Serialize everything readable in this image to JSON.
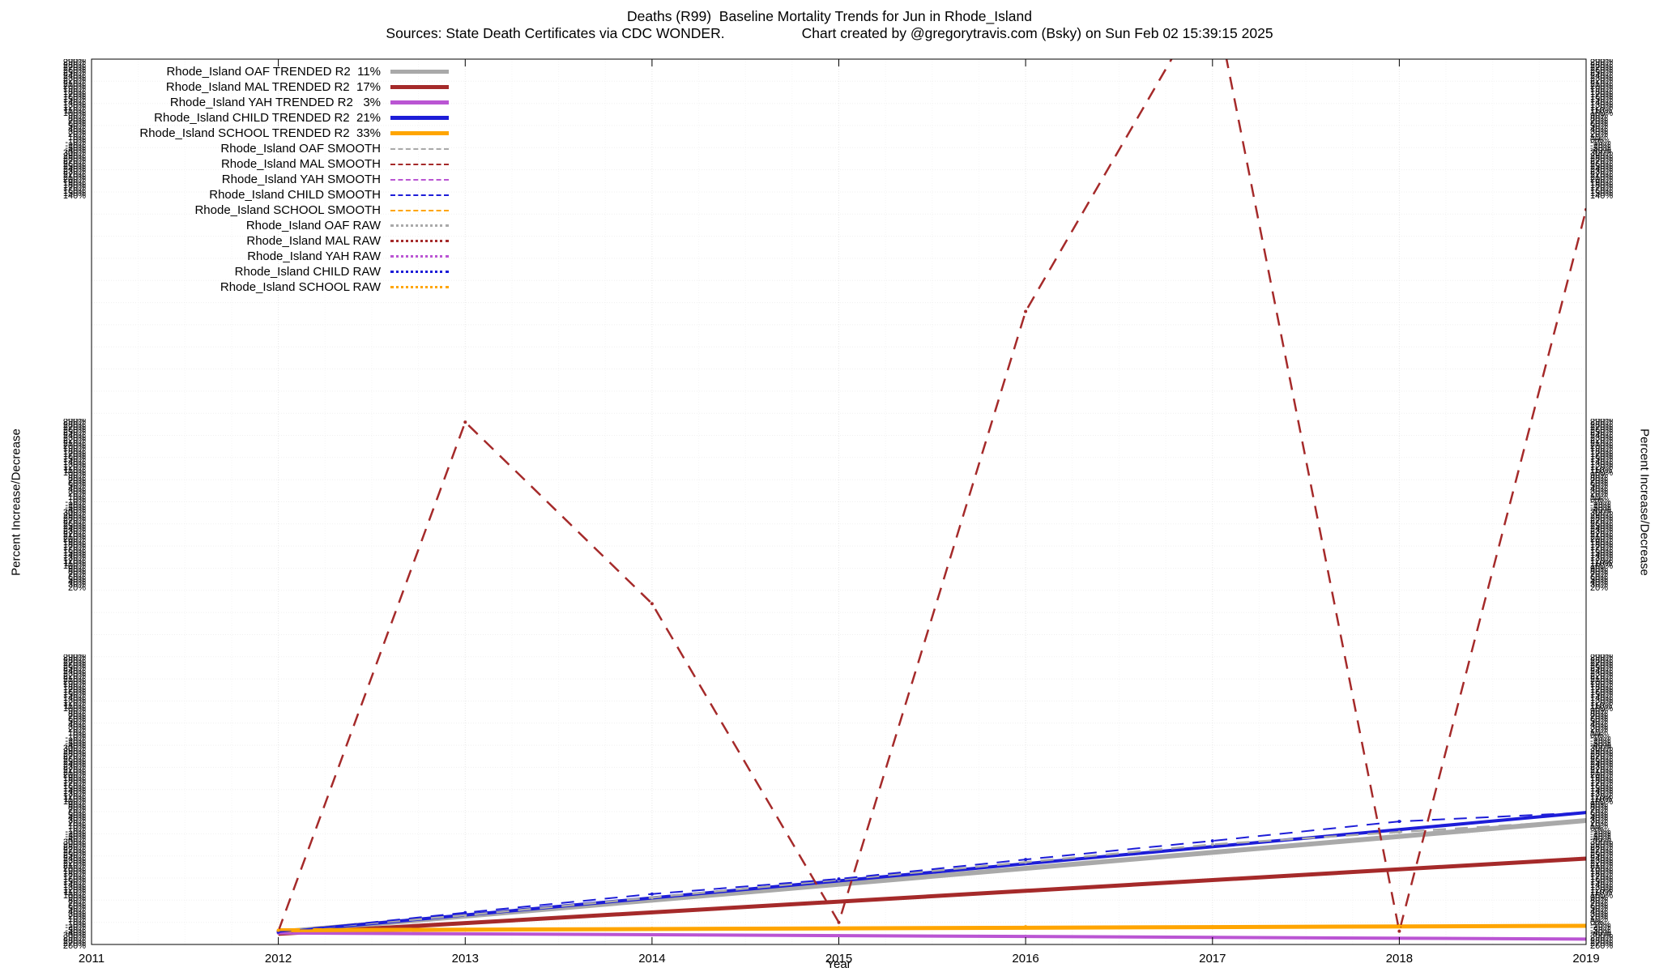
{
  "chart_data": {
    "type": "line",
    "title": "Deaths (R99)  Baseline Mortality Trends for Jun in Rhode_Island",
    "sources": "Sources: State Death Certificates via CDC WONDER.",
    "credit": "Chart created by @gregorytravis.com (Bsky) on Sun Feb 02 15:39:15 2025",
    "xlabel": "Year",
    "ylabel": "Percent Increase/Decrease",
    "xlim": [
      2011,
      2019
    ],
    "ylim": [
      0,
      100
    ],
    "y_tick_labels": "illegible (dense overlapping percent labels on both left and right axes)",
    "x_ticks": [
      "2011",
      "2012",
      "2013",
      "2014",
      "2015",
      "2016",
      "2017",
      "2018",
      "2019"
    ],
    "grid": true,
    "legend_position": "top-left",
    "legend": [
      {
        "label": "Rhode_Island OAF TRENDED R2  11%",
        "style": "solid",
        "color": "#a9a9a9"
      },
      {
        "label": "Rhode_Island MAL TRENDED R2  17%",
        "style": "solid",
        "color": "#a52a2a"
      },
      {
        "label": "Rhode_Island YAH TRENDED R2   3%",
        "style": "solid",
        "color": "#ba55d3"
      },
      {
        "label": "Rhode_Island CHILD TRENDED R2  21%",
        "style": "solid",
        "color": "#1d1dd8"
      },
      {
        "label": "Rhode_Island SCHOOL TRENDED R2  33%",
        "style": "solid",
        "color": "#ffa500"
      },
      {
        "label": "Rhode_Island OAF SMOOTH",
        "style": "dashed",
        "color": "#a9a9a9"
      },
      {
        "label": "Rhode_Island MAL SMOOTH",
        "style": "dashed",
        "color": "#a52a2a"
      },
      {
        "label": "Rhode_Island YAH SMOOTH",
        "style": "dashed",
        "color": "#ba55d3"
      },
      {
        "label": "Rhode_Island CHILD SMOOTH",
        "style": "dashed",
        "color": "#1d1dd8"
      },
      {
        "label": "Rhode_Island SCHOOL SMOOTH",
        "style": "dashed",
        "color": "#ffa500"
      },
      {
        "label": "Rhode_Island OAF RAW",
        "style": "dotted",
        "color": "#a9a9a9"
      },
      {
        "label": "Rhode_Island MAL RAW",
        "style": "dotted",
        "color": "#a52a2a"
      },
      {
        "label": "Rhode_Island YAH RAW",
        "style": "dotted",
        "color": "#ba55d3"
      },
      {
        "label": "Rhode_Island CHILD RAW",
        "style": "dotted",
        "color": "#1d1dd8"
      },
      {
        "label": "Rhode_Island SCHOOL RAW",
        "style": "dotted",
        "color": "#ffa500"
      }
    ],
    "series": [
      {
        "name": "Rhode_Island OAF TRENDED",
        "role": "trend",
        "r2": "11%",
        "color": "#a9a9a9",
        "width": 6,
        "dash": null,
        "points": [
          [
            2012,
            1.4
          ],
          [
            2019,
            14.0
          ]
        ]
      },
      {
        "name": "Rhode_Island MAL TRENDED",
        "role": "trend",
        "r2": "17%",
        "color": "#a52a2a",
        "width": 5,
        "dash": null,
        "points": [
          [
            2012,
            1.2
          ],
          [
            2019,
            9.7
          ]
        ]
      },
      {
        "name": "Rhode_Island YAH TRENDED",
        "role": "trend",
        "r2": "3%",
        "color": "#ba55d3",
        "width": 4,
        "dash": null,
        "points": [
          [
            2012,
            1.3
          ],
          [
            2019,
            0.6
          ]
        ]
      },
      {
        "name": "Rhode_Island CHILD TRENDED",
        "role": "trend",
        "r2": "21%",
        "color": "#1d1dd8",
        "width": 4,
        "dash": null,
        "points": [
          [
            2012,
            1.4
          ],
          [
            2019,
            14.9
          ]
        ]
      },
      {
        "name": "Rhode_Island SCHOOL TRENDED",
        "role": "trend",
        "r2": "33%",
        "color": "#ffa500",
        "width": 5,
        "dash": null,
        "points": [
          [
            2012,
            1.6
          ],
          [
            2019,
            2.1
          ]
        ]
      },
      {
        "name": "Rhode_Island OAF SMOOTH",
        "role": "smooth",
        "color": "#a9a9a9",
        "width": 2.5,
        "dash": "16,11",
        "points": [
          [
            2012,
            1.5
          ],
          [
            2013,
            3.3
          ],
          [
            2014,
            5.3
          ],
          [
            2015,
            7.3
          ],
          [
            2016,
            9.3
          ],
          [
            2017,
            11.3
          ],
          [
            2018,
            12.7
          ],
          [
            2019,
            14.0
          ]
        ]
      },
      {
        "name": "Rhode_Island MAL SMOOTH",
        "role": "smooth",
        "color": "#a52a2a",
        "width": 2.5,
        "dash": "16,11",
        "points": [
          [
            2012,
            1.5
          ],
          [
            2013,
            59.0
          ],
          [
            2014,
            38.5
          ],
          [
            2015,
            2.5
          ],
          [
            2016,
            71.5
          ],
          [
            2017,
            108.0
          ],
          [
            2018,
            1.5
          ],
          [
            2019,
            83.0
          ]
        ]
      },
      {
        "name": "Rhode_Island YAH SMOOTH",
        "role": "smooth",
        "color": "#ba55d3",
        "width": 2,
        "dash": "16,11",
        "points": [
          [
            2012,
            1.3
          ],
          [
            2013,
            1.2
          ],
          [
            2014,
            1.1
          ],
          [
            2015,
            1.0
          ],
          [
            2016,
            0.9
          ],
          [
            2017,
            0.8
          ],
          [
            2018,
            0.7
          ],
          [
            2019,
            0.6
          ]
        ]
      },
      {
        "name": "Rhode_Island CHILD SMOOTH",
        "role": "smooth",
        "color": "#1d1dd8",
        "width": 2,
        "dash": "16,11",
        "points": [
          [
            2012,
            1.4
          ],
          [
            2013,
            3.6
          ],
          [
            2014,
            5.7
          ],
          [
            2015,
            7.4
          ],
          [
            2016,
            9.6
          ],
          [
            2017,
            11.7
          ],
          [
            2018,
            13.9
          ],
          [
            2019,
            14.9
          ]
        ]
      },
      {
        "name": "Rhode_Island SCHOOL SMOOTH",
        "role": "smooth",
        "color": "#ffa500",
        "width": 2,
        "dash": "16,11",
        "points": [
          [
            2012,
            1.6
          ],
          [
            2013,
            1.7
          ],
          [
            2014,
            1.8
          ],
          [
            2015,
            1.9
          ],
          [
            2016,
            2.0
          ],
          [
            2017,
            2.0
          ],
          [
            2018,
            2.1
          ],
          [
            2019,
            2.1
          ]
        ]
      },
      {
        "name": "Rhode_Island OAF RAW",
        "role": "raw",
        "color": "#a9a9a9",
        "points": [
          [
            2012,
            1.5
          ],
          [
            2013,
            3.3
          ],
          [
            2014,
            5.3
          ],
          [
            2015,
            7.3
          ],
          [
            2016,
            9.3
          ],
          [
            2017,
            11.3
          ],
          [
            2018,
            12.7
          ],
          [
            2019,
            14.0
          ]
        ]
      },
      {
        "name": "Rhode_Island MAL RAW",
        "role": "raw",
        "color": "#a52a2a",
        "points": [
          [
            2012,
            1.5
          ],
          [
            2013,
            59.0
          ],
          [
            2014,
            38.5
          ],
          [
            2015,
            2.5
          ],
          [
            2016,
            71.5
          ],
          [
            2018,
            1.5
          ],
          [
            2019,
            83.0
          ]
        ]
      },
      {
        "name": "Rhode_Island YAH RAW",
        "role": "raw",
        "color": "#ba55d3",
        "points": [
          [
            2012,
            1.3
          ],
          [
            2013,
            1.2
          ],
          [
            2014,
            1.1
          ],
          [
            2015,
            1.0
          ],
          [
            2016,
            0.9
          ],
          [
            2017,
            0.8
          ],
          [
            2018,
            0.7
          ],
          [
            2019,
            0.6
          ]
        ]
      },
      {
        "name": "Rhode_Island CHILD RAW",
        "role": "raw",
        "color": "#1d1dd8",
        "points": [
          [
            2012,
            1.4
          ],
          [
            2013,
            3.6
          ],
          [
            2014,
            5.7
          ],
          [
            2015,
            7.4
          ],
          [
            2016,
            9.6
          ],
          [
            2017,
            11.7
          ],
          [
            2018,
            13.9
          ],
          [
            2019,
            14.9
          ]
        ]
      },
      {
        "name": "Rhode_Island SCHOOL RAW",
        "role": "raw",
        "color": "#ffa500",
        "points": [
          [
            2012,
            1.6
          ],
          [
            2013,
            1.7
          ],
          [
            2014,
            1.8
          ],
          [
            2015,
            1.9
          ],
          [
            2016,
            2.0
          ],
          [
            2017,
            2.0
          ],
          [
            2018,
            2.1
          ],
          [
            2019,
            2.1
          ]
        ]
      }
    ],
    "y_axis_smudge_labels": [
      "300%",
      "290%",
      "280%",
      "270%",
      "260%",
      "250%",
      "240%",
      "230%",
      "220%",
      "210%",
      "200%",
      "190%",
      "180%",
      "170%",
      "160%",
      "150%",
      "140%",
      "130%",
      "120%",
      "110%",
      "100%",
      "90%",
      "80%",
      "70%",
      "60%",
      "50%",
      "40%",
      "30%",
      "20%",
      "10%",
      "0%",
      "-10%",
      "-20%",
      "-30%",
      "-40%"
    ]
  }
}
